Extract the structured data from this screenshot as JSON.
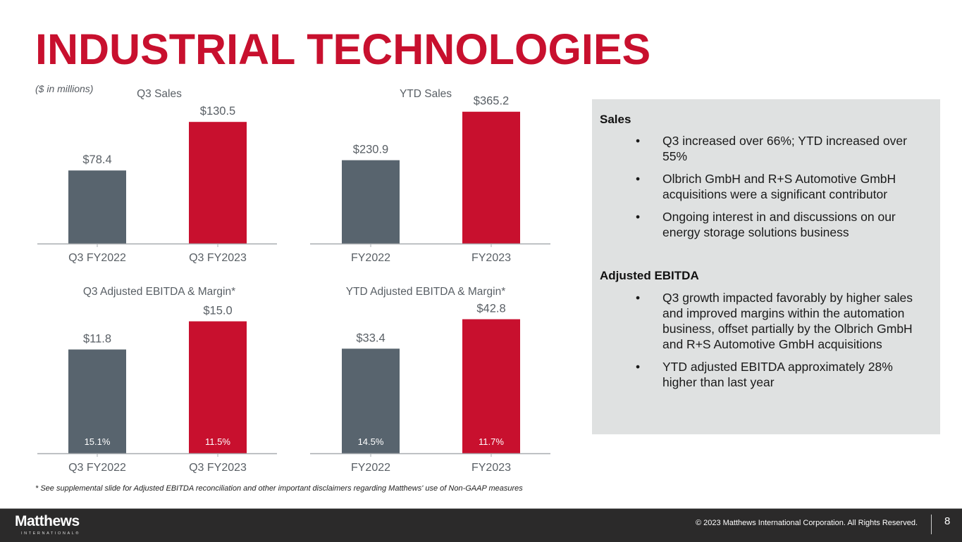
{
  "page": {
    "title": "INDUSTRIAL TECHNOLOGIES",
    "units_note": "($ in millions)",
    "footnote": "* See supplemental slide for Adjusted EBITDA reconciliation and other important disclaimers regarding Matthews' use of Non-GAAP measures",
    "colors": {
      "accent": "#c8102e",
      "prior_year": "#58646e",
      "axis": "#a8acb0",
      "label": "#595f65",
      "panel_bg": "#dfe1e1",
      "footer_bg": "#2b2a2a"
    }
  },
  "chart_data": [
    {
      "type": "bar",
      "title": "Q3 Sales",
      "categories": [
        "Q3 FY2022",
        "Q3 FY2023"
      ],
      "values": [
        78.4,
        130.5
      ],
      "value_labels": [
        "$78.4",
        "$130.5"
      ],
      "xlabel": "",
      "ylabel": "",
      "ylim": [
        0,
        145
      ],
      "grid": false
    },
    {
      "type": "bar",
      "title": "YTD Sales",
      "categories": [
        "FY2022",
        "FY2023"
      ],
      "values": [
        230.9,
        365.2
      ],
      "value_labels": [
        "$230.9",
        "$365.2"
      ],
      "xlabel": "",
      "ylabel": "",
      "ylim": [
        0,
        390
      ],
      "grid": false
    },
    {
      "type": "bar",
      "title": "Q3 Adjusted EBITDA & Margin*",
      "categories": [
        "Q3 FY2022",
        "Q3 FY2023"
      ],
      "values": [
        11.8,
        15.0
      ],
      "value_labels": [
        "$11.8",
        "$15.0"
      ],
      "margins": [
        "15.1%",
        "11.5%"
      ],
      "xlabel": "",
      "ylabel": "",
      "ylim": [
        0,
        18.8
      ],
      "grid": false
    },
    {
      "type": "bar",
      "title": "YTD Adjusted EBITDA & Margin*",
      "categories": [
        "FY2022",
        "FY2023"
      ],
      "values": [
        33.4,
        42.8
      ],
      "value_labels": [
        "$33.4",
        "$42.8"
      ],
      "margins": [
        "14.5%",
        "11.7%"
      ],
      "xlabel": "",
      "ylabel": "",
      "ylim": [
        0,
        52.8
      ],
      "grid": false
    }
  ],
  "panel": {
    "sections": [
      {
        "heading": "Sales",
        "bullets": [
          "Q3 increased over 66%; YTD increased over 55%",
          "Olbrich GmbH and R+S Automotive GmbH acquisitions were a significant contributor",
          "Ongoing interest in and discussions on our energy storage solutions business"
        ]
      },
      {
        "heading": "Adjusted EBITDA",
        "bullets": [
          "Q3 growth impacted favorably by higher sales and improved margins within the automation business, offset partially by the Olbrich GmbH and R+S Automotive GmbH acquisitions",
          "YTD adjusted EBITDA  approximately 28% higher than last year"
        ]
      }
    ],
    "bullet_glyph": "•"
  },
  "footer": {
    "logo_word": "Matthews",
    "logo_sub": "INTERNATIONAL®",
    "copyright": "© 2023 Matthews International Corporation. All Rights Reserved.",
    "page_number": "8"
  }
}
